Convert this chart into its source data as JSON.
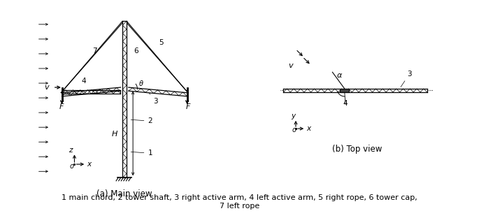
{
  "fig_width": 6.85,
  "fig_height": 3.12,
  "dpi": 100,
  "caption": "1 main chord, 2 tower shaft, 3 right active arm, 4 left active arm, 5 right rope, 6 tower cap,\n7 left rope",
  "label_a": "(a) Main view",
  "label_b": "(b) Top view",
  "bg_color": "#ffffff",
  "line_color": "#000000"
}
